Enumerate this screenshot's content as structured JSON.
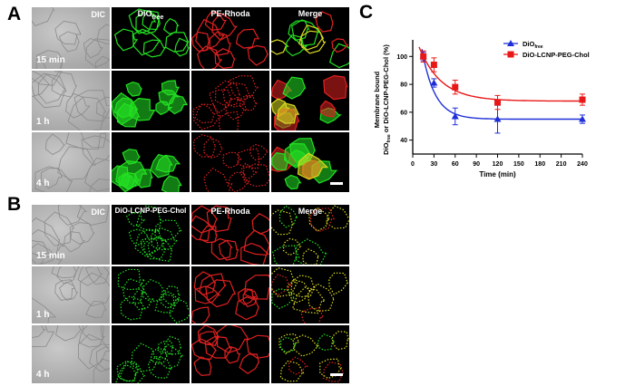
{
  "panels": {
    "a": {
      "letter": "A",
      "channels": [
        "DIC",
        "DiO",
        "free",
        "PE-Rhoda",
        "Merge"
      ],
      "times": [
        "15 min",
        "1 h",
        "4 h"
      ]
    },
    "b": {
      "letter": "B",
      "channels": [
        "DIC",
        "DiO-LCNP-PEG-Chol",
        "PE-Rhoda",
        "Merge"
      ],
      "times": [
        "15 min",
        "1 h",
        "4 h"
      ]
    },
    "c": {
      "letter": "C"
    }
  },
  "colors": {
    "green": "#22e022",
    "red": "#e02020",
    "merge": "#d8d820",
    "blue": "#1f2fd8",
    "series_red": "#e81818"
  },
  "chart_data": {
    "type": "scatter",
    "xlabel": "Time (min)",
    "ylabel_line1": "Membrane bound",
    "ylabel_line2_prefix": "DiO",
    "ylabel_line2_sub": "free",
    "ylabel_line2_suffix": " or DiO-LCNP-PEG-Chol (%)",
    "xlim": [
      0,
      240
    ],
    "ylim": [
      30,
      108
    ],
    "xticks": [
      0,
      30,
      60,
      90,
      120,
      150,
      180,
      210,
      240
    ],
    "yticks": [
      40,
      60,
      80,
      100
    ],
    "legend_position": "top-right",
    "series": [
      {
        "name": "DiO",
        "name_sub": "free",
        "color": "#1f2fd8",
        "marker": "triangle",
        "x": [
          15,
          30,
          60,
          120,
          240
        ],
        "y": [
          100,
          81,
          57,
          55,
          55
        ],
        "err": [
          3,
          3,
          6,
          10,
          3
        ],
        "fit": {
          "plateau": 55,
          "span": 45,
          "k": 0.055,
          "x0": 15
        }
      },
      {
        "name": "DiO-LCNP-PEG-Chol",
        "color": "#e81818",
        "marker": "square",
        "x": [
          15,
          30,
          60,
          120,
          240
        ],
        "y": [
          100,
          94,
          78,
          67,
          69
        ],
        "err": [
          4,
          5,
          5,
          5,
          4
        ],
        "fit": {
          "plateau": 68,
          "span": 32,
          "k": 0.032,
          "x0": 15
        }
      }
    ]
  }
}
